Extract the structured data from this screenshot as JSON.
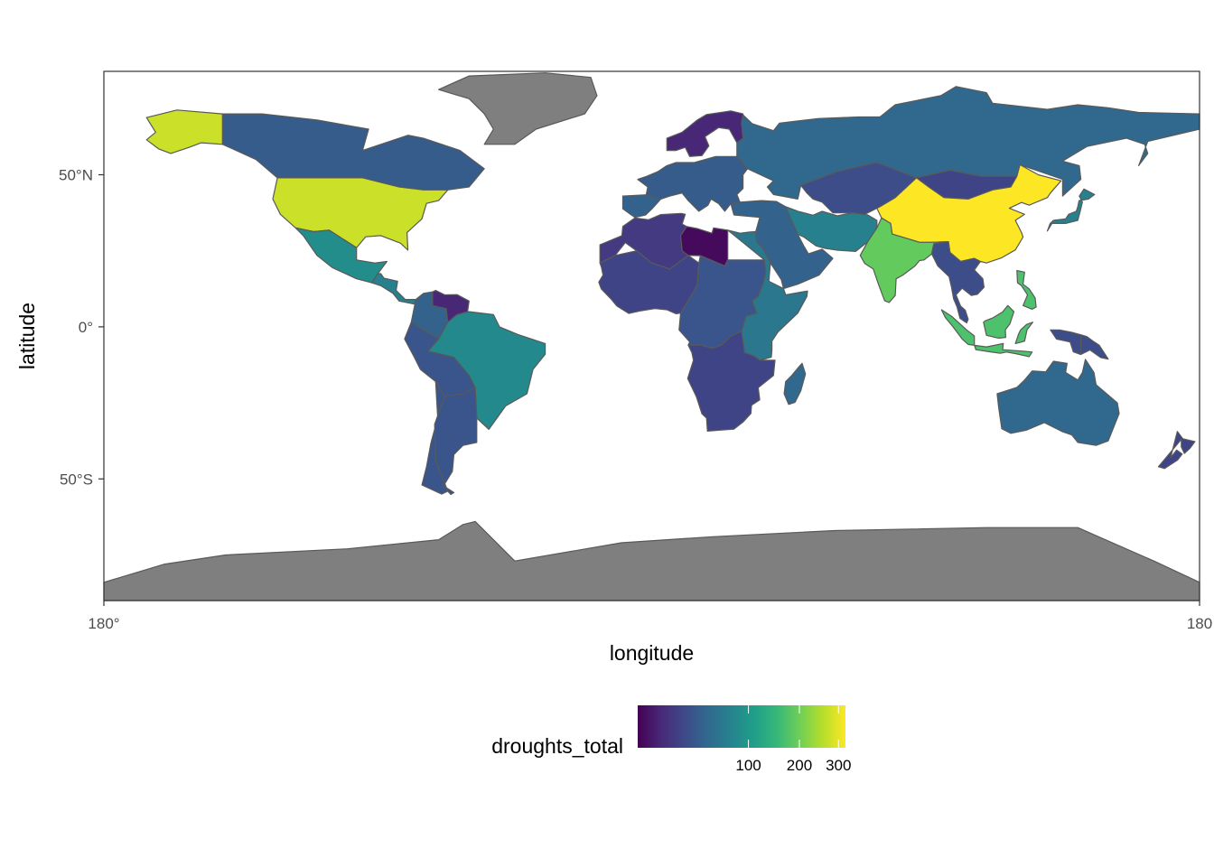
{
  "x_axis": {
    "title": "longitude",
    "ticks": [
      {
        "label": "180°",
        "lon": -180
      },
      {
        "label": "180",
        "lon": 180
      }
    ]
  },
  "y_axis": {
    "title": "latitude",
    "ticks": [
      {
        "label": "50°N",
        "lat": 50
      },
      {
        "label": "0°",
        "lat": 0
      },
      {
        "label": "50°S",
        "lat": -50
      }
    ]
  },
  "legend": {
    "title": "droughts_total",
    "ticks": [
      {
        "label": "100",
        "value": 100
      },
      {
        "label": "200",
        "value": 200
      },
      {
        "label": "300",
        "value": 300
      }
    ],
    "palette": "viridis",
    "scale": "sqrt",
    "range": [
      1,
      320
    ]
  },
  "colors": {
    "missing": "#7f7f7f",
    "panel_border": "#333333",
    "country_border": "#595959"
  },
  "chart_data": {
    "type": "choropleth",
    "variable": "droughts_total",
    "regions": [
      {
        "name": "China",
        "value": 320
      },
      {
        "name": "United States",
        "value": 275
      },
      {
        "name": "Alaska",
        "value": 275
      },
      {
        "name": "India",
        "value": 190
      },
      {
        "name": "Indonesia",
        "value": 170
      },
      {
        "name": "Philippines",
        "value": 170
      },
      {
        "name": "Mexico",
        "value": 85
      },
      {
        "name": "Brazil",
        "value": 80
      },
      {
        "name": "Russia",
        "value": 45
      },
      {
        "name": "Australia",
        "value": 45
      },
      {
        "name": "Canada",
        "value": 35
      },
      {
        "name": "Kazakhstan",
        "value": 25
      },
      {
        "name": "Argentina",
        "value": 30
      },
      {
        "name": "Peru-Bolivia",
        "value": 30
      },
      {
        "name": "Chile",
        "value": 30
      },
      {
        "name": "Colombia",
        "value": 40
      },
      {
        "name": "Venezuela",
        "value": 8
      },
      {
        "name": "Central America",
        "value": 70
      },
      {
        "name": "Western Europe",
        "value": 35
      },
      {
        "name": "Iberia",
        "value": 40
      },
      {
        "name": "Scandinavia",
        "value": 8
      },
      {
        "name": "Mongolia",
        "value": 20
      },
      {
        "name": "Middle East",
        "value": 40
      },
      {
        "name": "Iran-Afghanistan",
        "value": 70
      },
      {
        "name": "North Africa",
        "value": 15
      },
      {
        "name": "Libya",
        "value": 2
      },
      {
        "name": "West Africa",
        "value": 20
      },
      {
        "name": "Sahel-Central Africa",
        "value": 30
      },
      {
        "name": "East Africa",
        "value": 60
      },
      {
        "name": "Southern Africa",
        "value": 20
      },
      {
        "name": "Madagascar",
        "value": 45
      },
      {
        "name": "Japan",
        "value": 70
      },
      {
        "name": "Southeast Asia",
        "value": 25
      },
      {
        "name": "New Zealand",
        "value": 20
      },
      {
        "name": "Papua New Guinea",
        "value": 25
      },
      {
        "name": "Greenland",
        "value": null
      },
      {
        "name": "Antarctica",
        "value": null
      }
    ]
  }
}
